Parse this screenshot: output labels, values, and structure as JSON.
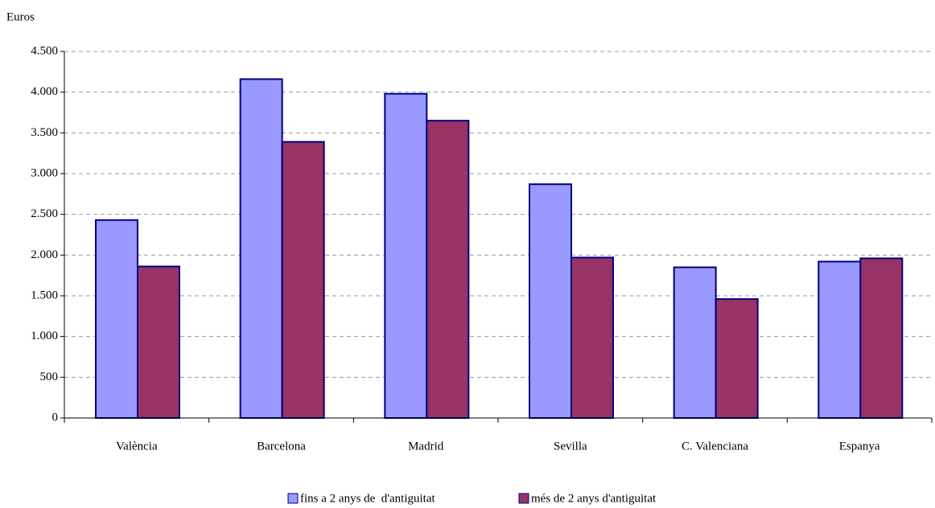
{
  "chart_data": {
    "type": "bar",
    "y_label": "Euros",
    "categories": [
      "València",
      "Barcelona",
      "Madrid",
      "Sevilla",
      "C. Valenciana",
      "Espanya"
    ],
    "series": [
      {
        "name": "fins a 2 anys de  d'antiguitat",
        "color": "#9999ff",
        "values": [
          2430,
          4160,
          3980,
          2870,
          1850,
          1920
        ]
      },
      {
        "name": "més de 2 anys d'antiguitat",
        "color": "#993366",
        "values": [
          1860,
          3390,
          3650,
          1970,
          1460,
          1960
        ]
      }
    ],
    "ylim": [
      0,
      4500
    ],
    "yticks": [
      0,
      500,
      {
        "value": 1000,
        "label": "1.000"
      },
      {
        "value": 1500,
        "label": "1.500"
      },
      {
        "value": 2000,
        "label": "2.000"
      },
      {
        "value": 2500,
        "label": "2.500"
      },
      {
        "value": 3000,
        "label": "3.000"
      },
      {
        "value": 3500,
        "label": "3.500"
      },
      {
        "value": 4000,
        "label": "4.000"
      },
      {
        "value": 4500,
        "label": "4.500"
      }
    ],
    "grid": true,
    "legend": "bottom"
  }
}
